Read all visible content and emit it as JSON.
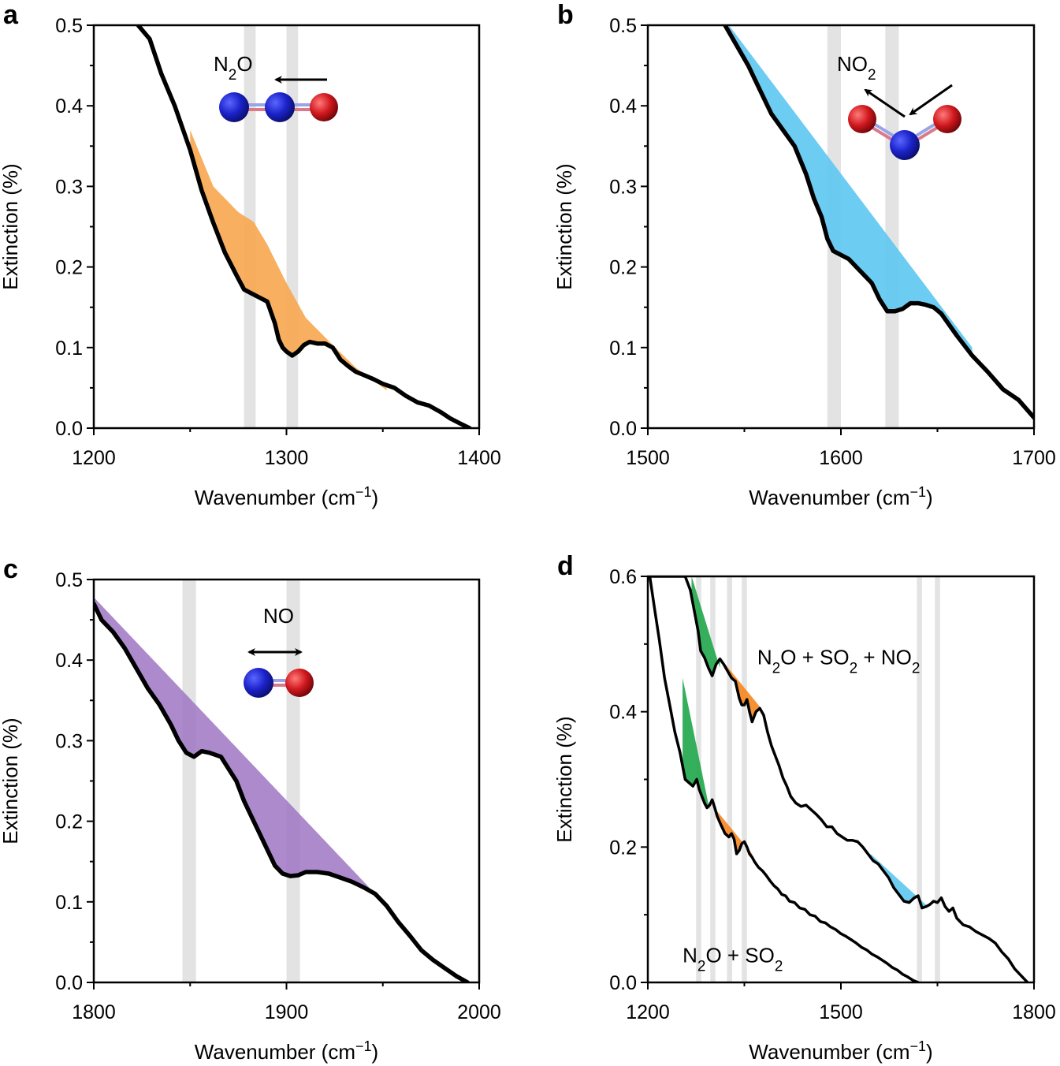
{
  "colors": {
    "orange": "#F7A64F",
    "blue": "#5DC7F0",
    "purple": "#9D76C3",
    "green": "#1FA64A",
    "orange_d": "#F5861E",
    "band": "#E3E3E3",
    "nitrogen": "#1B22C9",
    "oxygen": "#D0181E"
  },
  "chart_data": [
    {
      "id": "a",
      "panel_label": "a",
      "type": "area",
      "xlabel": "Wavenumber (cm",
      "xlabel_sup": "−1",
      "xlabel_end": ")",
      "ylabel": "Extinction (%)",
      "xlim": [
        1200,
        1400
      ],
      "ylim": [
        0,
        0.5
      ],
      "xticks": [
        "1200",
        "1300",
        "1400"
      ],
      "yticks": [
        "0.0",
        "0.1",
        "0.2",
        "0.3",
        "0.4",
        "0.5"
      ],
      "molecule": {
        "label": "N",
        "sub": "2",
        "label_end": "O",
        "atoms": [
          "nitrogen",
          "nitrogen",
          "oxygen"
        ],
        "arrow": "left"
      },
      "bands": [
        [
          1278,
          1284
        ],
        [
          1300,
          1306
        ]
      ],
      "series": [
        {
          "name": "N2O spectrum",
          "color": "black",
          "x": [
            1223,
            1229,
            1235,
            1242,
            1250,
            1256,
            1262,
            1268,
            1274,
            1278,
            1282,
            1286,
            1290,
            1294,
            1296,
            1298,
            1300,
            1303,
            1306,
            1309,
            1312,
            1316,
            1320,
            1324,
            1328,
            1332,
            1336,
            1340,
            1345,
            1350,
            1356,
            1362,
            1368,
            1374,
            1380,
            1385,
            1390,
            1395
          ],
          "y": [
            0.5,
            0.483,
            0.44,
            0.4,
            0.345,
            0.295,
            0.255,
            0.218,
            0.19,
            0.172,
            0.167,
            0.162,
            0.157,
            0.13,
            0.11,
            0.1,
            0.095,
            0.09,
            0.095,
            0.103,
            0.107,
            0.105,
            0.105,
            0.1,
            0.085,
            0.077,
            0.07,
            0.066,
            0.061,
            0.055,
            0.05,
            0.04,
            0.032,
            0.028,
            0.02,
            0.012,
            0.006,
            0.0
          ]
        }
      ],
      "fill": {
        "color": "orange",
        "from": 1250,
        "to": 1352,
        "baseline": [
          [
            1250,
            0.37
          ],
          [
            1262,
            0.3
          ],
          [
            1275,
            0.268
          ],
          [
            1283,
            0.256
          ],
          [
            1290,
            0.228
          ],
          [
            1300,
            0.18
          ],
          [
            1310,
            0.137
          ],
          [
            1322,
            0.108
          ],
          [
            1336,
            0.075
          ],
          [
            1352,
            0.047
          ]
        ]
      }
    },
    {
      "id": "b",
      "panel_label": "b",
      "type": "area",
      "xlabel": "Wavenumber (cm",
      "xlabel_sup": "−1",
      "xlabel_end": ")",
      "ylabel": "Extinction (%)",
      "xlim": [
        1500,
        1700
      ],
      "ylim": [
        0,
        0.5
      ],
      "xticks": [
        "1500",
        "1600",
        "1700"
      ],
      "yticks": [
        "0.0",
        "0.1",
        "0.2",
        "0.3",
        "0.4",
        "0.5"
      ],
      "molecule": {
        "label": "NO",
        "sub": "2",
        "label_end": "",
        "atoms": [
          "oxygen",
          "nitrogen",
          "oxygen"
        ],
        "arrow": "bent"
      },
      "bands": [
        [
          1593,
          1600
        ],
        [
          1623,
          1630
        ]
      ],
      "series": [
        {
          "name": "NO2 spectrum",
          "color": "black",
          "x": [
            1540,
            1546,
            1552,
            1558,
            1564,
            1570,
            1576,
            1582,
            1586,
            1590,
            1593,
            1596,
            1600,
            1604,
            1608,
            1612,
            1616,
            1620,
            1624,
            1628,
            1632,
            1636,
            1640,
            1644,
            1648,
            1652,
            1660,
            1668,
            1676,
            1684,
            1692,
            1700
          ],
          "y": [
            0.5,
            0.475,
            0.45,
            0.42,
            0.39,
            0.37,
            0.35,
            0.315,
            0.285,
            0.262,
            0.235,
            0.22,
            0.215,
            0.21,
            0.2,
            0.19,
            0.18,
            0.16,
            0.145,
            0.145,
            0.148,
            0.155,
            0.155,
            0.153,
            0.15,
            0.142,
            0.115,
            0.09,
            0.07,
            0.048,
            0.035,
            0.013
          ]
        }
      ],
      "fill": {
        "color": "blue",
        "from": 1542,
        "to": 1668,
        "baseline": [
          [
            1542,
            0.5
          ],
          [
            1668,
            0.1
          ]
        ]
      }
    },
    {
      "id": "c",
      "panel_label": "c",
      "type": "area",
      "xlabel": "Wavenumber (cm",
      "xlabel_sup": "−1",
      "xlabel_end": ")",
      "ylabel": "Extinction (%)",
      "xlim": [
        1800,
        2000
      ],
      "ylim": [
        0,
        0.5
      ],
      "xticks": [
        "1800",
        "1900",
        "2000"
      ],
      "yticks": [
        "0.0",
        "0.1",
        "0.2",
        "0.3",
        "0.4",
        "0.5"
      ],
      "molecule": {
        "label": "NO",
        "sub": "",
        "label_end": "",
        "atoms": [
          "nitrogen",
          "oxygen"
        ],
        "arrow": "double"
      },
      "bands": [
        [
          1846,
          1853
        ],
        [
          1900,
          1907
        ]
      ],
      "series": [
        {
          "name": "NO spectrum",
          "color": "black",
          "x": [
            1800,
            1804,
            1810,
            1816,
            1822,
            1828,
            1834,
            1840,
            1844,
            1848,
            1852,
            1856,
            1860,
            1866,
            1870,
            1874,
            1878,
            1882,
            1886,
            1890,
            1894,
            1898,
            1902,
            1906,
            1910,
            1916,
            1922,
            1928,
            1934,
            1940,
            1946,
            1952,
            1958,
            1964,
            1970,
            1976,
            1982,
            1988,
            1994
          ],
          "y": [
            0.47,
            0.45,
            0.435,
            0.415,
            0.39,
            0.365,
            0.345,
            0.32,
            0.3,
            0.285,
            0.28,
            0.287,
            0.285,
            0.28,
            0.265,
            0.25,
            0.225,
            0.205,
            0.185,
            0.165,
            0.145,
            0.135,
            0.132,
            0.133,
            0.137,
            0.137,
            0.135,
            0.13,
            0.125,
            0.118,
            0.11,
            0.095,
            0.075,
            0.058,
            0.04,
            0.028,
            0.018,
            0.008,
            0.0
          ]
        }
      ],
      "fill": {
        "color": "purple",
        "from": 1800,
        "to": 1952,
        "baseline": [
          [
            1800,
            0.478
          ],
          [
            1952,
            0.095
          ]
        ]
      }
    },
    {
      "id": "d",
      "panel_label": "d",
      "type": "area",
      "xlabel": "Wavenumber (cm",
      "xlabel_sup": "−1",
      "xlabel_end": ")",
      "ylabel": "Extinction (%)",
      "xlim": [
        1200,
        1800
      ],
      "ylim": [
        0,
        0.6
      ],
      "xticks": [
        "1200",
        "1500",
        "1800"
      ],
      "yticks": [
        "0.0",
        "0.2",
        "0.4",
        "0.6"
      ],
      "bands": [
        [
          1275,
          1283
        ],
        [
          1297,
          1305
        ],
        [
          1323,
          1331
        ],
        [
          1346,
          1354
        ],
        [
          1618,
          1626
        ],
        [
          1646,
          1654
        ]
      ],
      "labels": [
        {
          "name": "upper-trace-label",
          "parts": [
            "N",
            "2",
            "O + SO",
            "2",
            " + NO",
            "2"
          ],
          "x": 1370,
          "y": 0.47
        },
        {
          "name": "lower-trace-label",
          "parts": [
            "N",
            "2",
            "O + SO",
            "2"
          ],
          "x": 1254,
          "y": 0.03
        }
      ],
      "series": [
        {
          "name": "N2O + SO2",
          "color": "black",
          "x": [
            1203,
            1210,
            1218,
            1226,
            1234,
            1242,
            1250,
            1258,
            1264,
            1270,
            1276,
            1280,
            1284,
            1288,
            1292,
            1296,
            1300,
            1304,
            1308,
            1314,
            1320,
            1326,
            1330,
            1334,
            1338,
            1342,
            1346,
            1350,
            1354,
            1358,
            1362,
            1366,
            1372,
            1378,
            1384,
            1390,
            1396,
            1402,
            1408,
            1414,
            1420,
            1428,
            1436,
            1444,
            1452,
            1460,
            1468,
            1476,
            1484,
            1492,
            1500,
            1508,
            1516,
            1524,
            1532,
            1540,
            1548,
            1556,
            1564,
            1572,
            1580,
            1588,
            1596,
            1604,
            1612,
            1620,
            1628,
            1636,
            1640,
            1643,
            1646,
            1650
          ],
          "y": [
            0.6,
            0.555,
            0.505,
            0.45,
            0.41,
            0.37,
            0.34,
            0.3,
            0.295,
            0.29,
            0.3,
            0.285,
            0.275,
            0.265,
            0.258,
            0.262,
            0.27,
            0.258,
            0.245,
            0.232,
            0.22,
            0.215,
            0.22,
            0.212,
            0.19,
            0.195,
            0.205,
            0.208,
            0.2,
            0.19,
            0.185,
            0.178,
            0.17,
            0.165,
            0.158,
            0.15,
            0.143,
            0.138,
            0.13,
            0.128,
            0.12,
            0.118,
            0.11,
            0.108,
            0.1,
            0.098,
            0.09,
            0.088,
            0.082,
            0.078,
            0.072,
            0.068,
            0.063,
            0.058,
            0.052,
            0.048,
            0.042,
            0.038,
            0.033,
            0.028,
            0.022,
            0.018,
            0.012,
            0.008,
            0.003,
            0.0,
            -0.005,
            -0.01,
            -0.01,
            -0.005,
            -0.012,
            -0.02
          ]
        },
        {
          "name": "N2O + SO2 + NO2",
          "color": "black",
          "x": [
            1203,
            1210,
            1218,
            1226,
            1234,
            1242,
            1250,
            1258,
            1266,
            1272,
            1278,
            1282,
            1288,
            1294,
            1300,
            1306,
            1312,
            1318,
            1324,
            1330,
            1336,
            1342,
            1346,
            1350,
            1354,
            1358,
            1362,
            1368,
            1374,
            1380,
            1386,
            1392,
            1398,
            1404,
            1410,
            1416,
            1422,
            1430,
            1438,
            1446,
            1454,
            1462,
            1470,
            1478,
            1486,
            1494,
            1502,
            1510,
            1518,
            1526,
            1534,
            1542,
            1550,
            1558,
            1566,
            1574,
            1582,
            1590,
            1598,
            1606,
            1614,
            1620,
            1626,
            1632,
            1638,
            1644,
            1650,
            1656,
            1662,
            1668,
            1674,
            1680,
            1690,
            1700,
            1710,
            1720,
            1730,
            1740,
            1750,
            1760,
            1770,
            1780,
            1790
          ],
          "y": [
            0.6,
            0.6,
            0.6,
            0.6,
            0.6,
            0.6,
            0.6,
            0.6,
            0.58,
            0.55,
            0.52,
            0.49,
            0.48,
            0.465,
            0.453,
            0.47,
            0.478,
            0.47,
            0.46,
            0.45,
            0.445,
            0.42,
            0.41,
            0.41,
            0.418,
            0.4,
            0.385,
            0.4,
            0.405,
            0.395,
            0.37,
            0.35,
            0.335,
            0.32,
            0.302,
            0.29,
            0.275,
            0.265,
            0.26,
            0.262,
            0.255,
            0.248,
            0.24,
            0.23,
            0.23,
            0.22,
            0.215,
            0.21,
            0.21,
            0.208,
            0.2,
            0.19,
            0.18,
            0.175,
            0.165,
            0.155,
            0.14,
            0.13,
            0.12,
            0.118,
            0.125,
            0.128,
            0.11,
            0.112,
            0.115,
            0.12,
            0.118,
            0.125,
            0.112,
            0.105,
            0.11,
            0.095,
            0.085,
            0.082,
            0.075,
            0.07,
            0.065,
            0.058,
            0.045,
            0.035,
            0.02,
            0.01,
            0.0
          ]
        }
      ],
      "fills": [
        {
          "color": "green",
          "series": 0,
          "from": 1254,
          "to": 1296,
          "baseline": [
            [
              1254,
              0.45
            ],
            [
              1296,
              0.255
            ]
          ]
        },
        {
          "color": "orange_d",
          "series": 0,
          "from": 1306,
          "to": 1362,
          "baseline": [
            [
              1306,
              0.255
            ],
            [
              1362,
              0.19
            ]
          ]
        },
        {
          "color": "green",
          "series": 1,
          "from": 1268,
          "to": 1312,
          "baseline": [
            [
              1268,
              0.6
            ],
            [
              1312,
              0.465
            ]
          ]
        },
        {
          "color": "orange_d",
          "series": 1,
          "from": 1312,
          "to": 1376,
          "baseline": [
            [
              1312,
              0.48
            ],
            [
              1376,
              0.405
            ]
          ]
        },
        {
          "color": "blue",
          "series": 1,
          "from": 1546,
          "to": 1632,
          "baseline": [
            [
              1546,
              0.19
            ],
            [
              1632,
              0.115
            ]
          ]
        }
      ]
    }
  ]
}
